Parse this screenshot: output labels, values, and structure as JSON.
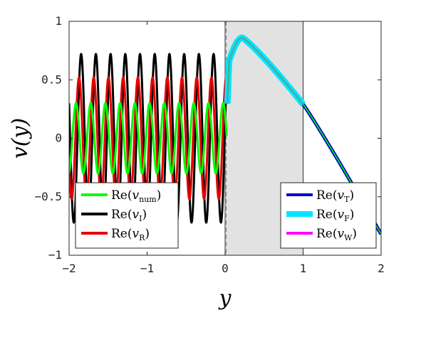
{
  "chart_data": {
    "type": "line",
    "xlabel": "y",
    "ylabel": "v(y)",
    "xlim": [
      -2,
      2
    ],
    "ylim": [
      -1,
      1
    ],
    "xticks": [
      "−2",
      "−1",
      "0",
      "1",
      "2"
    ],
    "yticks": [
      "−1",
      "−0.5",
      "0",
      "0.5",
      "1"
    ],
    "shaded_region": {
      "x": [
        0,
        1
      ],
      "color": "#e2e2e2"
    },
    "vertical_lines": [
      {
        "x": 0,
        "style": "dashed",
        "color": "#888888"
      },
      {
        "x": 0,
        "style": "solid",
        "color": "#555555"
      }
    ],
    "grid": false,
    "series": [
      {
        "name_base": "Re(",
        "name_var": "v",
        "name_sub": "num",
        "name_tail": ")",
        "color": "#00ff00",
        "description": "oscillation on [-2,0] amplitude about 0.3"
      },
      {
        "name_base": "Re(",
        "name_var": "v",
        "name_sub": "I",
        "name_tail": ")",
        "color": "#000000",
        "description": "oscillation on [-2,0] amplitude about 0.72"
      },
      {
        "name_base": "Re(",
        "name_var": "v",
        "name_sub": "R",
        "name_tail": ")",
        "color": "#e60000",
        "description": "oscillation on [-2,0] amplitude about 0.52"
      },
      {
        "name_base": "Re(",
        "name_var": "v",
        "name_sub": "T",
        "name_tail": ")",
        "color": "#0000cc",
        "description": "decaying curve on [1,2] from 0.29 to -0.82"
      },
      {
        "name_base": "Re(",
        "name_var": "v",
        "name_sub": "F",
        "name_tail": ")",
        "color": "#00e5ff",
        "description": "curve on [0,1] rising to peak 0.86 near y=0.22 then falling to 0.29"
      },
      {
        "name_base": "Re(",
        "name_var": "v",
        "name_sub": "W",
        "name_tail": ")",
        "color": "#ff00ff",
        "description": "overlaps Re(v_F) on [0,1]"
      }
    ],
    "legend_left_placement": "lower-left",
    "legend_right_placement": "lower-right"
  }
}
